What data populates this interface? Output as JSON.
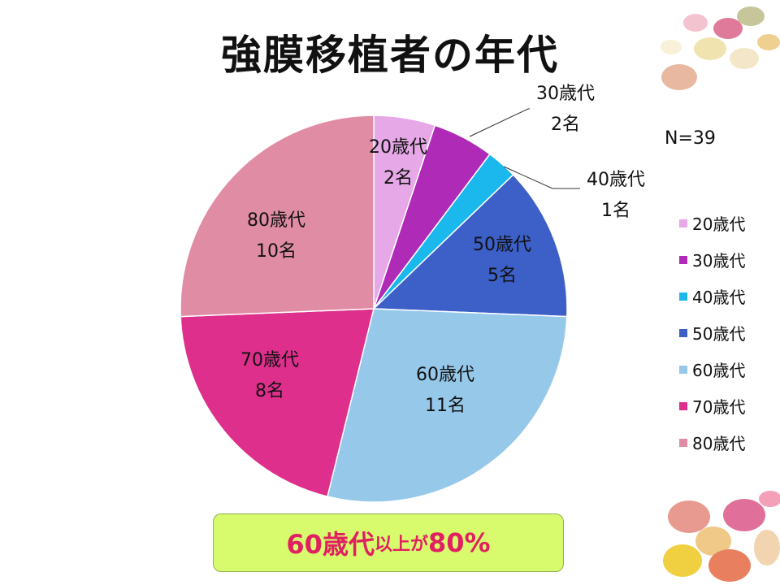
{
  "title": "強膜移植者の年代",
  "n_label": "N=39",
  "footer": {
    "part1": "60歳代",
    "part2": "以上",
    "part3": "が",
    "part4": "80%"
  },
  "chart_data": {
    "type": "pie",
    "categories": [
      "20歳代",
      "30歳代",
      "40歳代",
      "50歳代",
      "60歳代",
      "70歳代",
      "80歳代"
    ],
    "values": [
      2,
      2,
      1,
      5,
      11,
      8,
      10
    ],
    "data_labels": [
      [
        "20歳代",
        "2名"
      ],
      [
        "30歳代",
        "2名"
      ],
      [
        "40歳代",
        "1名"
      ],
      [
        "50歳代",
        "5名"
      ],
      [
        "60歳代",
        "11名"
      ],
      [
        "70歳代",
        "8名"
      ],
      [
        "80歳代",
        "10名"
      ]
    ],
    "colors": [
      "#e6a8e6",
      "#b02ab8",
      "#1ab8ec",
      "#3c5fc8",
      "#96c8ea",
      "#de2f8c",
      "#e08ca4"
    ],
    "legend_placement": "right",
    "start": "12 o'clock, clockwise"
  },
  "decorations": {
    "top_right": "candy-eggs-image",
    "bottom_right": "candy-eggs-image"
  }
}
